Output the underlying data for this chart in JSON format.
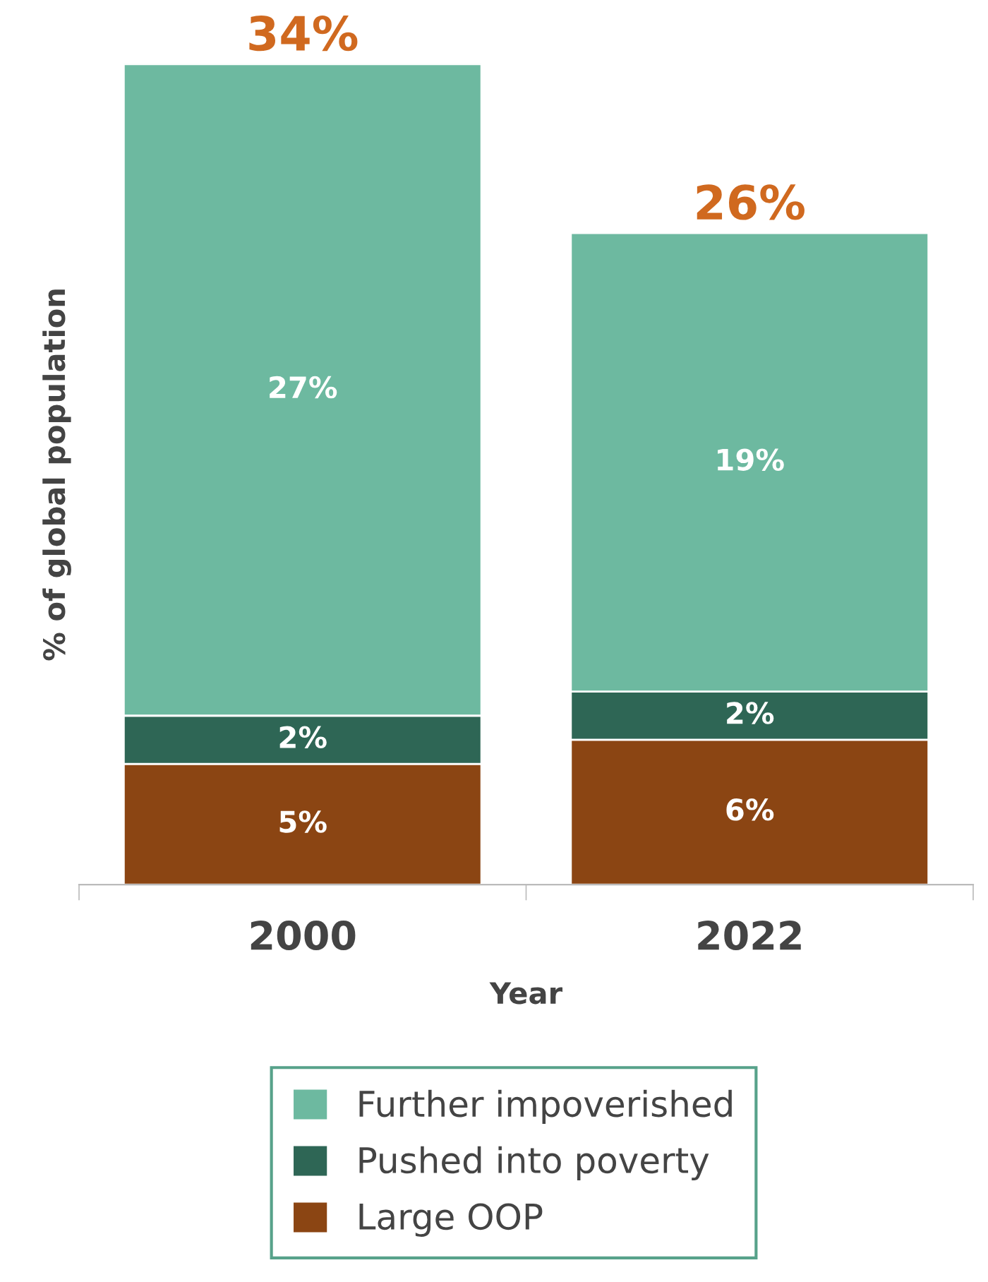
{
  "chart_data": {
    "type": "bar",
    "stacked": true,
    "xlabel": "Year",
    "ylabel": "% of global population",
    "categories": [
      "2000",
      "2022"
    ],
    "series": [
      {
        "name": "Large OOP",
        "color": "#8b4513",
        "values": [
          5,
          6
        ],
        "value_labels": [
          "5%",
          "6%"
        ]
      },
      {
        "name": "Pushed into poverty",
        "color": "#2e6655",
        "values": [
          2,
          2
        ],
        "value_labels": [
          "2%",
          "2%"
        ]
      },
      {
        "name": "Further impoverished",
        "color": "#6db9a0",
        "values": [
          27,
          19
        ],
        "value_labels": [
          "27%",
          "19%"
        ]
      }
    ],
    "totals": [
      "34%",
      "26%"
    ],
    "legend": "bottom",
    "grid": false
  }
}
